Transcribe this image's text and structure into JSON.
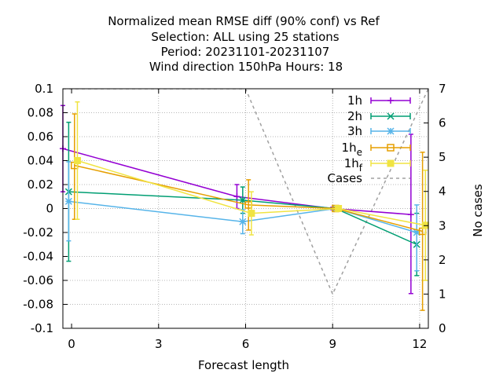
{
  "chart_data": {
    "type": "line",
    "title_lines": [
      "Normalized mean RMSE diff (90% conf) vs Ref",
      "Selection: ALL using    25 stations",
      "Period: 20231101-20231107",
      "Wind direction 150hPa   Hours:  18"
    ],
    "xlabel": "Forecast length",
    "ylabel": "",
    "y2label": "No cases",
    "xlim": [
      -0.3,
      12.3
    ],
    "ylim": [
      -0.1,
      0.1
    ],
    "y2lim": [
      0,
      7
    ],
    "xticks": [
      0,
      3,
      6,
      9,
      12
    ],
    "yticks": [
      -0.1,
      -0.08,
      -0.06,
      -0.04,
      -0.02,
      0,
      0.02,
      0.04,
      0.06,
      0.08,
      0.1
    ],
    "ytick_labels": [
      "-0.1",
      "-0.08",
      "-0.06",
      "-0.04",
      "-0.02",
      "0",
      "0.02",
      "0.04",
      "0.06",
      "0.08",
      "0.1"
    ],
    "y2ticks": [
      0,
      1,
      2,
      3,
      4,
      5,
      6,
      7
    ],
    "grid": true,
    "legend_position": "top-right",
    "series": [
      {
        "name": "1h",
        "color": "#9400d3",
        "marker": "plus",
        "x": [
          -0.3,
          5.7,
          9.0,
          11.7
        ],
        "y": [
          0.05,
          0.01,
          0.0,
          -0.005
        ],
        "err_low": [
          0.014,
          0.0,
          -0.001,
          -0.071
        ],
        "err_high": [
          0.086,
          0.02,
          0.001,
          0.062
        ]
      },
      {
        "name": "2h",
        "color": "#009e73",
        "marker": "x",
        "x": [
          -0.1,
          5.9,
          9.1,
          11.9
        ],
        "y": [
          0.014,
          0.007,
          0.0,
          -0.03
        ],
        "err_low": [
          -0.044,
          -0.004,
          -0.001,
          -0.056
        ],
        "err_high": [
          0.072,
          0.018,
          0.001,
          -0.004
        ]
      },
      {
        "name": "3h",
        "color": "#56b4e9",
        "marker": "asterisk",
        "x": [
          -0.1,
          5.9,
          9.1,
          11.9
        ],
        "y": [
          0.006,
          -0.011,
          0.0,
          -0.02
        ],
        "err_low": [
          -0.027,
          -0.021,
          -0.001,
          -0.052
        ],
        "err_high": [
          0.039,
          -0.001,
          0.001,
          0.003
        ]
      },
      {
        "name": "1h",
        "sub": "e",
        "color": "#e69f00",
        "marker": "square",
        "x": [
          0.1,
          6.1,
          9.1,
          12.1
        ],
        "y": [
          0.036,
          0.003,
          0.0,
          -0.019
        ],
        "err_low": [
          -0.009,
          -0.018,
          -0.001,
          -0.085
        ],
        "err_high": [
          0.079,
          0.024,
          0.001,
          0.047
        ]
      },
      {
        "name": "1h",
        "sub": "f",
        "color": "#f0e442",
        "marker": "filled-square",
        "x": [
          0.2,
          6.2,
          9.2,
          12.2
        ],
        "y": [
          0.04,
          -0.004,
          0.0,
          -0.014
        ],
        "err_low": [
          -0.009,
          -0.022,
          -0.001,
          -0.06
        ],
        "err_high": [
          0.089,
          0.014,
          0.001,
          0.032
        ]
      }
    ],
    "cases": {
      "name": "Cases",
      "color": "#a0a0a0",
      "dash": true,
      "axis": "y2",
      "x": [
        -0.3,
        6,
        9,
        12.3
      ],
      "y": [
        7,
        7,
        1,
        7
      ]
    }
  }
}
